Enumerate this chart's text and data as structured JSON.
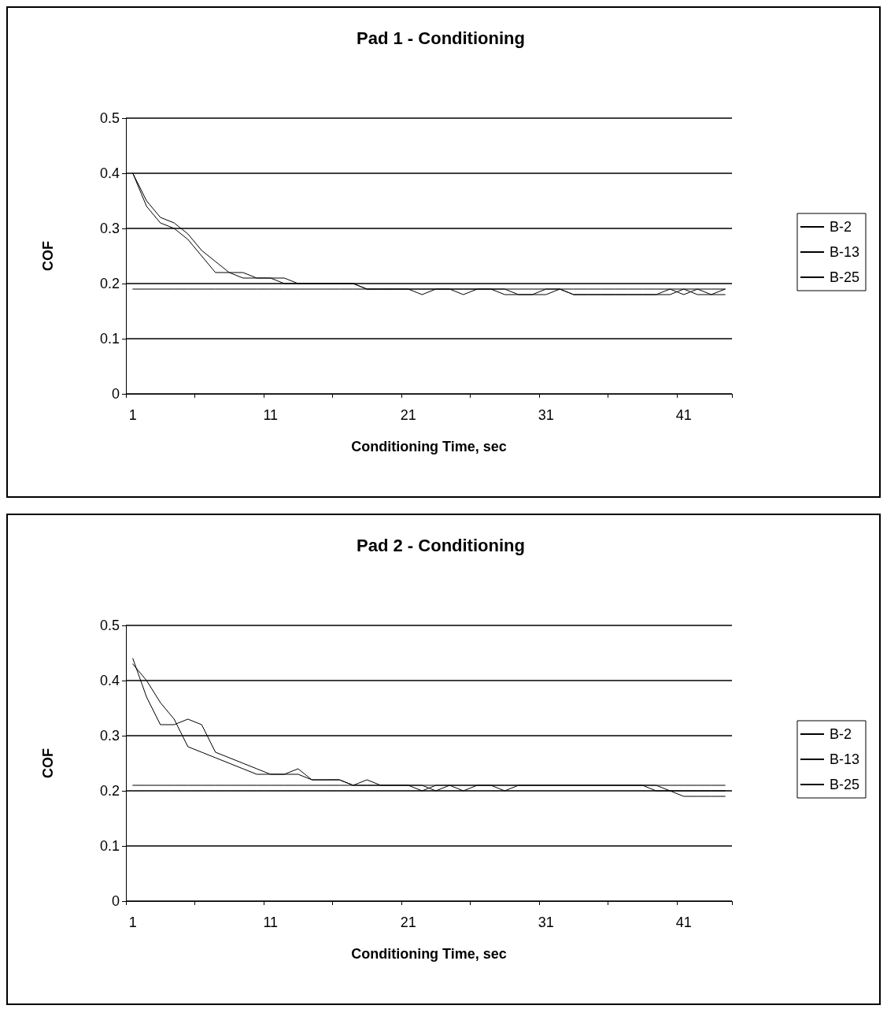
{
  "chart_data": [
    {
      "type": "line",
      "title": "Pad 1 - Conditioning",
      "xlabel": "Conditioning Time, sec",
      "ylabel": "COF",
      "categories": [
        "1",
        null,
        null,
        null,
        null,
        null,
        null,
        null,
        null,
        null,
        "11",
        null,
        null,
        null,
        null,
        null,
        null,
        null,
        null,
        null,
        "21",
        null,
        null,
        null,
        null,
        null,
        null,
        null,
        null,
        null,
        "31",
        null,
        null,
        null,
        null,
        null,
        null,
        null,
        null,
        null,
        "41",
        null,
        null,
        null
      ],
      "ylim": [
        0,
        0.5
      ],
      "yticks": [
        0,
        0.1,
        0.2,
        0.3,
        0.4,
        0.5
      ],
      "grid": "y",
      "legend": "right",
      "marker": "none",
      "line_style": "solid",
      "series": [
        {
          "name": "B-2",
          "color": "#000000",
          "values": [
            0.4,
            0.35,
            0.32,
            0.31,
            0.29,
            0.26,
            0.24,
            0.22,
            0.22,
            0.21,
            0.21,
            0.21,
            0.2,
            0.2,
            0.2,
            0.2,
            0.2,
            0.19,
            0.19,
            0.19,
            0.19,
            0.18,
            0.19,
            0.19,
            0.18,
            0.19,
            0.19,
            0.18,
            0.18,
            0.18,
            0.19,
            0.19,
            0.18,
            0.18,
            0.18,
            0.18,
            0.18,
            0.18,
            0.18,
            0.19,
            0.18,
            0.19,
            0.18,
            0.18
          ]
        },
        {
          "name": "B-13",
          "color": "#000000",
          "values": [
            0.4,
            0.34,
            0.31,
            0.3,
            0.28,
            0.25,
            0.22,
            0.22,
            0.21,
            0.21,
            0.21,
            0.2,
            0.2,
            0.2,
            0.2,
            0.2,
            0.2,
            0.19,
            0.19,
            0.19,
            0.19,
            0.19,
            0.19,
            0.19,
            0.19,
            0.19,
            0.19,
            0.19,
            0.18,
            0.18,
            0.18,
            0.19,
            0.18,
            0.18,
            0.18,
            0.18,
            0.18,
            0.18,
            0.18,
            0.18,
            0.19,
            0.18,
            0.18,
            0.19
          ]
        },
        {
          "name": "B-25",
          "color": "#000000",
          "values": [
            0.19,
            0.19,
            0.19,
            0.19,
            0.19,
            0.19,
            0.19,
            0.19,
            0.19,
            0.19,
            0.19,
            0.19,
            0.19,
            0.19,
            0.19,
            0.19,
            0.19,
            0.19,
            0.19,
            0.19,
            0.19,
            0.19,
            0.19,
            0.19,
            0.19,
            0.19,
            0.19,
            0.19,
            0.19,
            0.19,
            0.19,
            0.19,
            0.19,
            0.19,
            0.19,
            0.19,
            0.19,
            0.19,
            0.19,
            0.19,
            0.19,
            0.19,
            0.19,
            0.19
          ]
        }
      ]
    },
    {
      "type": "line",
      "title": "Pad 2 - Conditioning",
      "xlabel": "Conditioning Time, sec",
      "ylabel": "COF",
      "categories": [
        "1",
        null,
        null,
        null,
        null,
        null,
        null,
        null,
        null,
        null,
        "11",
        null,
        null,
        null,
        null,
        null,
        null,
        null,
        null,
        null,
        "21",
        null,
        null,
        null,
        null,
        null,
        null,
        null,
        null,
        null,
        "31",
        null,
        null,
        null,
        null,
        null,
        null,
        null,
        null,
        null,
        "41",
        null,
        null,
        null
      ],
      "ylim": [
        0,
        0.5
      ],
      "yticks": [
        0,
        0.1,
        0.2,
        0.3,
        0.4,
        0.5
      ],
      "grid": "y",
      "legend": "right",
      "marker": "none",
      "line_style": "solid",
      "series": [
        {
          "name": "B-2",
          "color": "#000000",
          "values": [
            0.44,
            0.37,
            0.32,
            0.32,
            0.33,
            0.32,
            0.27,
            0.26,
            0.25,
            0.24,
            0.23,
            0.23,
            0.24,
            0.22,
            0.22,
            0.22,
            0.21,
            0.22,
            0.21,
            0.21,
            0.21,
            0.2,
            0.21,
            0.21,
            0.21,
            0.21,
            0.21,
            0.21,
            0.21,
            0.21,
            0.21,
            0.21,
            0.21,
            0.21,
            0.21,
            0.21,
            0.21,
            0.21,
            0.21,
            0.2,
            0.19,
            0.19,
            0.19,
            0.19
          ]
        },
        {
          "name": "B-13",
          "color": "#000000",
          "values": [
            0.43,
            0.4,
            0.36,
            0.33,
            0.28,
            0.27,
            0.26,
            0.25,
            0.24,
            0.23,
            0.23,
            0.23,
            0.23,
            0.22,
            0.22,
            0.22,
            0.21,
            0.21,
            0.21,
            0.21,
            0.21,
            0.21,
            0.2,
            0.21,
            0.2,
            0.21,
            0.21,
            0.2,
            0.21,
            0.21,
            0.21,
            0.21,
            0.21,
            0.21,
            0.21,
            0.21,
            0.21,
            0.21,
            0.2,
            0.2,
            0.2,
            0.2,
            0.2,
            0.2
          ]
        },
        {
          "name": "B-25",
          "color": "#000000",
          "values": [
            0.21,
            0.21,
            0.21,
            0.21,
            0.21,
            0.21,
            0.21,
            0.21,
            0.21,
            0.21,
            0.21,
            0.21,
            0.21,
            0.21,
            0.21,
            0.21,
            0.21,
            0.21,
            0.21,
            0.21,
            0.21,
            0.21,
            0.21,
            0.21,
            0.21,
            0.21,
            0.21,
            0.21,
            0.21,
            0.21,
            0.21,
            0.21,
            0.21,
            0.21,
            0.21,
            0.21,
            0.21,
            0.21,
            0.21,
            0.21,
            0.21,
            0.21,
            0.21,
            0.21
          ]
        }
      ]
    }
  ]
}
